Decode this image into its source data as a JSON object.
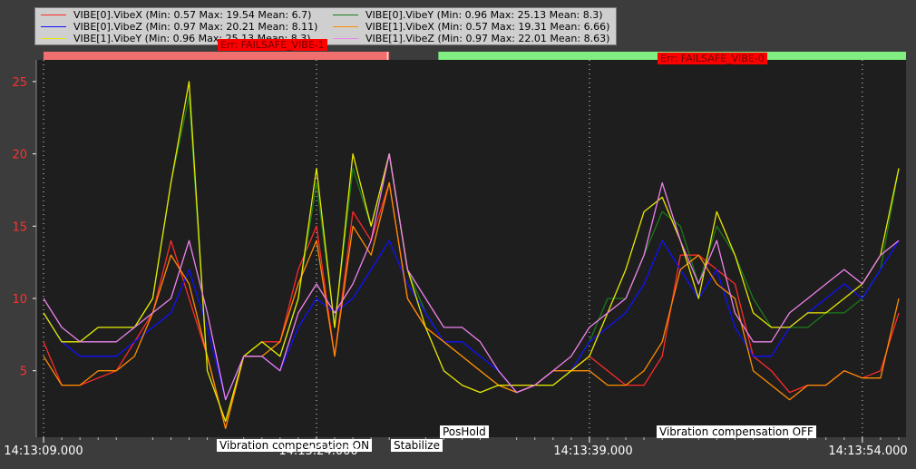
{
  "legend": [
    {
      "text": "VIBE[0].VibeX  (Min: 0.57 Max: 19.54 Mean: 6.7)",
      "color": "#ff2a2a"
    },
    {
      "text": "VIBE[0].VibeY  (Min: 0.96 Max: 25.13 Mean: 8.3)",
      "color": "#1a7a1a"
    },
    {
      "text": "VIBE[0].VibeZ  (Min: 0.97 Max: 20.21 Mean: 8.11)",
      "color": "#1010ff"
    },
    {
      "text": "VIBE[1].VibeX  (Min: 0.57 Max: 19.31 Mean: 6.66)",
      "color": "#ff8c00"
    },
    {
      "text": "VIBE[1].VibeY  (Min: 0.96 Max: 25.13 Mean: 8.3)",
      "color": "#e8e800"
    },
    {
      "text": "VIBE[1].VibeZ  (Min: 0.97 Max: 22.01 Mean: 8.63)",
      "color": "#ee82ee"
    }
  ],
  "errors": [
    {
      "text": "Err: FAILSAFE_VIBE-1",
      "t": 12.3
    },
    {
      "text": "Err: FAILSAFE_VIBE-0",
      "t": 41.7
    }
  ],
  "modes": [
    {
      "text": "Vibration compensation ON",
      "t": 15.1
    },
    {
      "text": "Stabilize",
      "t": 19.1
    },
    {
      "text": "PosHold",
      "t": 21.8
    },
    {
      "text": "Vibration compensation OFF",
      "t": 45.0
    }
  ],
  "status_bar": [
    {
      "from": 0,
      "to": 19.0,
      "color": "#f07070"
    },
    {
      "from": 21.7,
      "to": 47.4,
      "color": "#80ee80"
    }
  ],
  "chart_data": {
    "type": "line",
    "xlabel": "",
    "ylabel": "",
    "x_ticks": [
      "14:13:09.000",
      "14:13:24.000",
      "14:13:39.000",
      "14:13:54.000"
    ],
    "x_tick_seconds": [
      0,
      15,
      30,
      45
    ],
    "xlim": [
      -0.4,
      47.4
    ],
    "ylim": [
      0.4,
      26.5
    ],
    "y_ticks": [
      5,
      10,
      15,
      20,
      25
    ],
    "grid": true,
    "series": [
      {
        "name": "VIBE[0].VibeX",
        "color": "#ff2a2a",
        "x": [
          0,
          1,
          2,
          3,
          4,
          5,
          6,
          7,
          8,
          9,
          10,
          11,
          12,
          13,
          14,
          15,
          16,
          17,
          18,
          19,
          20,
          21,
          22,
          23,
          24,
          25,
          26,
          27,
          28,
          29,
          30,
          31,
          32,
          33,
          34,
          35,
          36,
          37,
          38,
          39,
          40,
          41,
          42,
          43,
          44,
          45,
          46,
          47
        ],
        "values": [
          7,
          4,
          4,
          4.5,
          5,
          7,
          9,
          14,
          10,
          6,
          1,
          6,
          7,
          7,
          12,
          15,
          6,
          16,
          14,
          18,
          10,
          8,
          7,
          6,
          5,
          4,
          4,
          4,
          5,
          5,
          6,
          5,
          4,
          4,
          6,
          13,
          13,
          12,
          11,
          6,
          5,
          3.5,
          4,
          4,
          5,
          4.5,
          5,
          9
        ]
      },
      {
        "name": "VIBE[0].VibeY",
        "color": "#1a7a1a",
        "x": [
          0,
          1,
          2,
          3,
          4,
          5,
          6,
          7,
          8,
          9,
          10,
          11,
          12,
          13,
          14,
          15,
          16,
          17,
          18,
          19,
          20,
          21,
          22,
          23,
          24,
          25,
          26,
          27,
          28,
          29,
          30,
          31,
          32,
          33,
          34,
          35,
          36,
          37,
          38,
          39,
          40,
          41,
          42,
          43,
          44,
          45,
          46,
          47
        ],
        "values": [
          9,
          7,
          7,
          8,
          8,
          8,
          10,
          18,
          24,
          5,
          1.5,
          6,
          7,
          6,
          10,
          18,
          8,
          19,
          15,
          20,
          12,
          9,
          7,
          6,
          5,
          4,
          3.5,
          4,
          4,
          5,
          7,
          10,
          10,
          13,
          16,
          15,
          11,
          15,
          13,
          10,
          8,
          8,
          8,
          9,
          9,
          10,
          12,
          19
        ]
      },
      {
        "name": "VIBE[0].VibeZ",
        "color": "#1010ff",
        "x": [
          0,
          1,
          2,
          3,
          4,
          5,
          6,
          7,
          8,
          9,
          10,
          11,
          12,
          13,
          14,
          15,
          16,
          17,
          18,
          19,
          20,
          21,
          22,
          23,
          24,
          25,
          26,
          27,
          28,
          29,
          30,
          31,
          32,
          33,
          34,
          35,
          36,
          37,
          38,
          39,
          40,
          41,
          42,
          43,
          44,
          45,
          46,
          47
        ],
        "values": [
          9,
          7,
          6,
          6,
          6,
          7,
          8,
          9,
          12,
          8,
          3,
          6,
          6,
          5,
          8,
          10,
          9,
          10,
          12,
          14,
          11,
          9,
          7,
          7,
          6,
          5,
          3.5,
          4,
          5,
          5,
          7,
          8,
          9,
          11,
          14,
          12,
          10,
          12,
          8,
          6,
          6,
          8,
          9,
          10,
          11,
          10,
          12,
          14
        ]
      },
      {
        "name": "VIBE[1].VibeX",
        "color": "#ff8c00",
        "x": [
          0,
          1,
          2,
          3,
          4,
          5,
          6,
          7,
          8,
          9,
          10,
          11,
          12,
          13,
          14,
          15,
          16,
          17,
          18,
          19,
          20,
          21,
          22,
          23,
          24,
          25,
          26,
          27,
          28,
          29,
          30,
          31,
          32,
          33,
          34,
          35,
          36,
          37,
          38,
          39,
          40,
          41,
          42,
          43,
          44,
          45,
          46,
          47
        ],
        "values": [
          6,
          4,
          4,
          5,
          5,
          6,
          9,
          13,
          11,
          6,
          1,
          6,
          6,
          7,
          11,
          14,
          6,
          15,
          13,
          18,
          10,
          8,
          7,
          6,
          5,
          4,
          3.5,
          4,
          5,
          5,
          5,
          4,
          4,
          5,
          7,
          12,
          13,
          11,
          10,
          5,
          4,
          3,
          4,
          4,
          5,
          4.5,
          4.5,
          10
        ]
      },
      {
        "name": "VIBE[1].VibeY",
        "color": "#e8e800",
        "x": [
          0,
          1,
          2,
          3,
          4,
          5,
          6,
          7,
          8,
          9,
          10,
          11,
          12,
          13,
          14,
          15,
          16,
          17,
          18,
          19,
          20,
          21,
          22,
          23,
          24,
          25,
          26,
          27,
          28,
          29,
          30,
          31,
          32,
          33,
          34,
          35,
          36,
          37,
          38,
          39,
          40,
          41,
          42,
          43,
          44,
          45,
          46,
          47
        ],
        "values": [
          9,
          7,
          7,
          8,
          8,
          8,
          10,
          18,
          25,
          5,
          1.5,
          6,
          7,
          6,
          10,
          19,
          8,
          20,
          15,
          20,
          12,
          8,
          5,
          4,
          3.5,
          4,
          4,
          4,
          4,
          5,
          6,
          9,
          12,
          16,
          17,
          14,
          10,
          16,
          13,
          9,
          8,
          8,
          9,
          9,
          10,
          11,
          13,
          19
        ]
      },
      {
        "name": "VIBE[1].VibeZ",
        "color": "#ee82ee",
        "x": [
          0,
          1,
          2,
          3,
          4,
          5,
          6,
          7,
          8,
          9,
          10,
          11,
          12,
          13,
          14,
          15,
          16,
          17,
          18,
          19,
          20,
          21,
          22,
          23,
          24,
          25,
          26,
          27,
          28,
          29,
          30,
          31,
          32,
          33,
          34,
          35,
          36,
          37,
          38,
          39,
          40,
          41,
          42,
          43,
          44,
          45,
          46,
          47
        ],
        "values": [
          10,
          8,
          7,
          7,
          7,
          8,
          9,
          10,
          14,
          9,
          3,
          6,
          6,
          5,
          9,
          11,
          9,
          11,
          14,
          20,
          12,
          10,
          8,
          8,
          7,
          5,
          3.5,
          4,
          5,
          6,
          8,
          9,
          10,
          13,
          18,
          14,
          11,
          14,
          9,
          7,
          7,
          9,
          10,
          11,
          12,
          11,
          13,
          14
        ]
      }
    ]
  }
}
